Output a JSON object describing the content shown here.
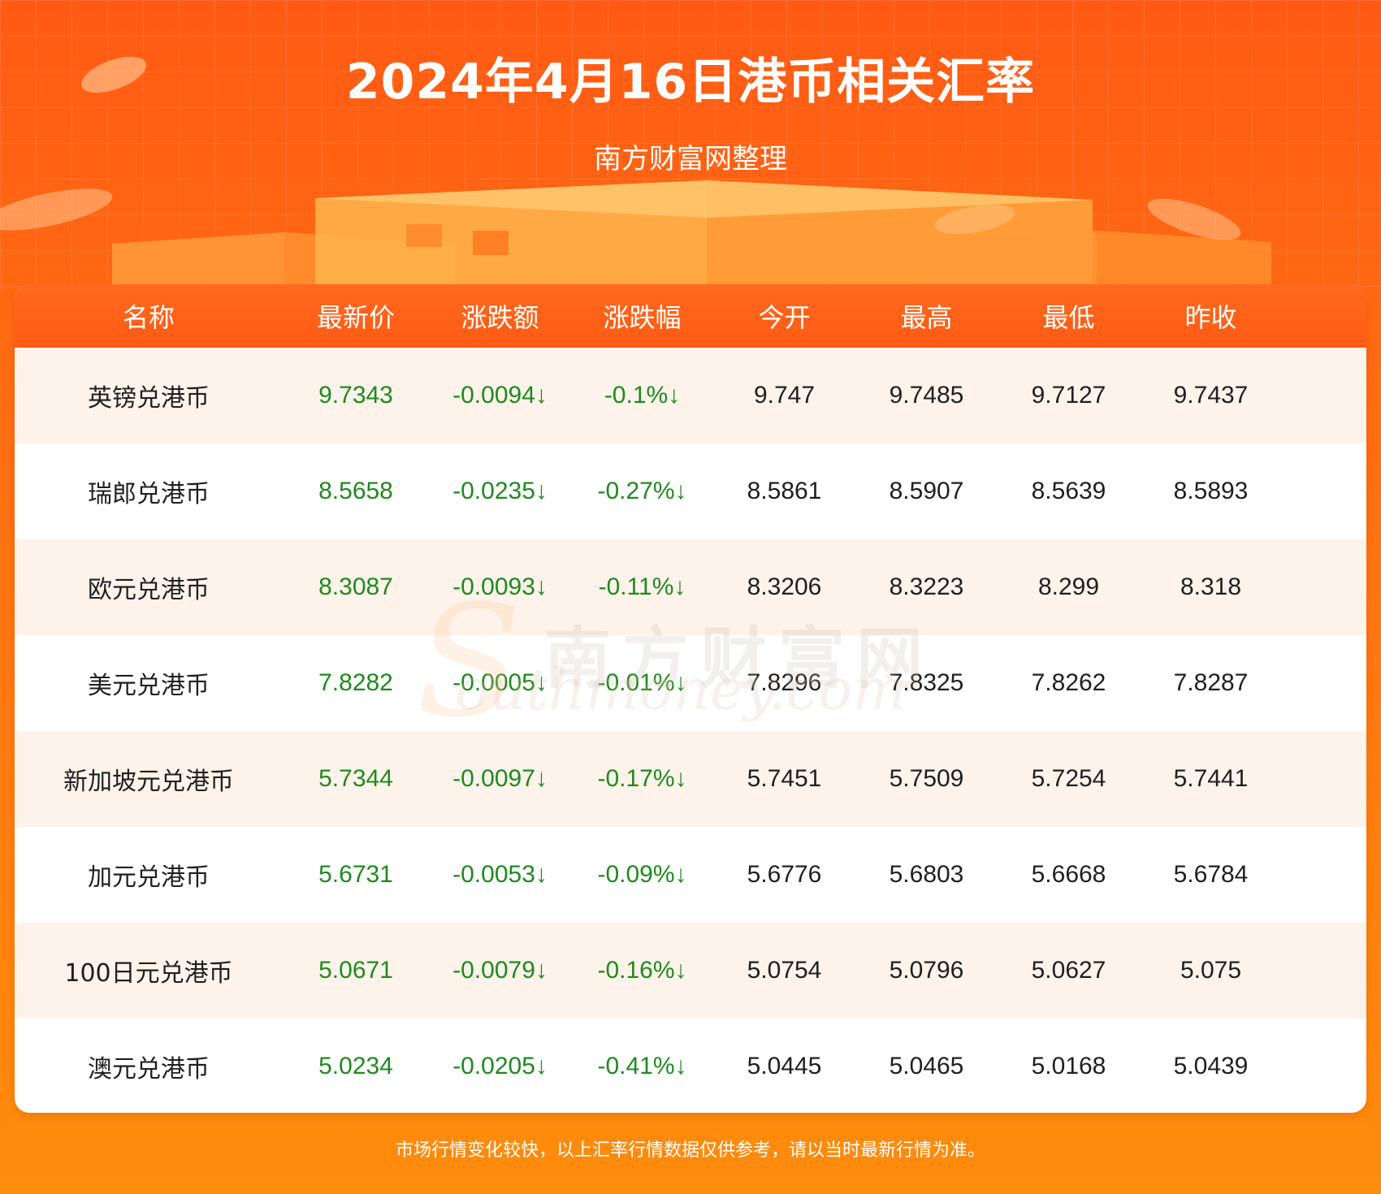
{
  "header": {
    "title": "2024年4月16日港币相关汇率",
    "subtitle": "南方财富网整理"
  },
  "table": {
    "columns": [
      "名称",
      "最新价",
      "涨跌额",
      "涨跌幅",
      "今开",
      "最高",
      "最低",
      "昨收"
    ],
    "rows": [
      {
        "name": "英镑兑港币",
        "latest": "9.7343",
        "change": "-0.0094↓",
        "pct": "-0.1%↓",
        "open": "9.747",
        "high": "9.7485",
        "low": "9.7127",
        "prev": "9.7437"
      },
      {
        "name": "瑞郎兑港币",
        "latest": "8.5658",
        "change": "-0.0235↓",
        "pct": "-0.27%↓",
        "open": "8.5861",
        "high": "8.5907",
        "low": "8.5639",
        "prev": "8.5893"
      },
      {
        "name": "欧元兑港币",
        "latest": "8.3087",
        "change": "-0.0093↓",
        "pct": "-0.11%↓",
        "open": "8.3206",
        "high": "8.3223",
        "low": "8.299",
        "prev": "8.318"
      },
      {
        "name": "美元兑港币",
        "latest": "7.8282",
        "change": "-0.0005↓",
        "pct": "-0.01%↓",
        "open": "7.8296",
        "high": "7.8325",
        "low": "7.8262",
        "prev": "7.8287"
      },
      {
        "name": "新加坡元兑港币",
        "latest": "5.7344",
        "change": "-0.0097↓",
        "pct": "-0.17%↓",
        "open": "5.7451",
        "high": "5.7509",
        "low": "5.7254",
        "prev": "5.7441"
      },
      {
        "name": "加元兑港币",
        "latest": "5.6731",
        "change": "-0.0053↓",
        "pct": "-0.09%↓",
        "open": "5.6776",
        "high": "5.6803",
        "low": "5.6668",
        "prev": "5.6784"
      },
      {
        "name": "100日元兑港币",
        "latest": "5.0671",
        "change": "-0.0079↓",
        "pct": "-0.16%↓",
        "open": "5.0754",
        "high": "5.0796",
        "low": "5.0627",
        "prev": "5.075"
      },
      {
        "name": "澳元兑港币",
        "latest": "5.0234",
        "change": "-0.0205↓",
        "pct": "-0.41%↓",
        "open": "5.0445",
        "high": "5.0465",
        "low": "5.0168",
        "prev": "5.0439"
      }
    ]
  },
  "watermark": {
    "cn": "南方财富网",
    "en": "outhmoney.com",
    "s": "S"
  },
  "footer": {
    "note": "市场行情变化较快，以上汇率行情数据仅供参考，请以当时最新行情为准。"
  },
  "colors": {
    "accent": "#ff5a14",
    "down_green": "#1e8a1e",
    "row_alt": "#fdf3ea"
  }
}
